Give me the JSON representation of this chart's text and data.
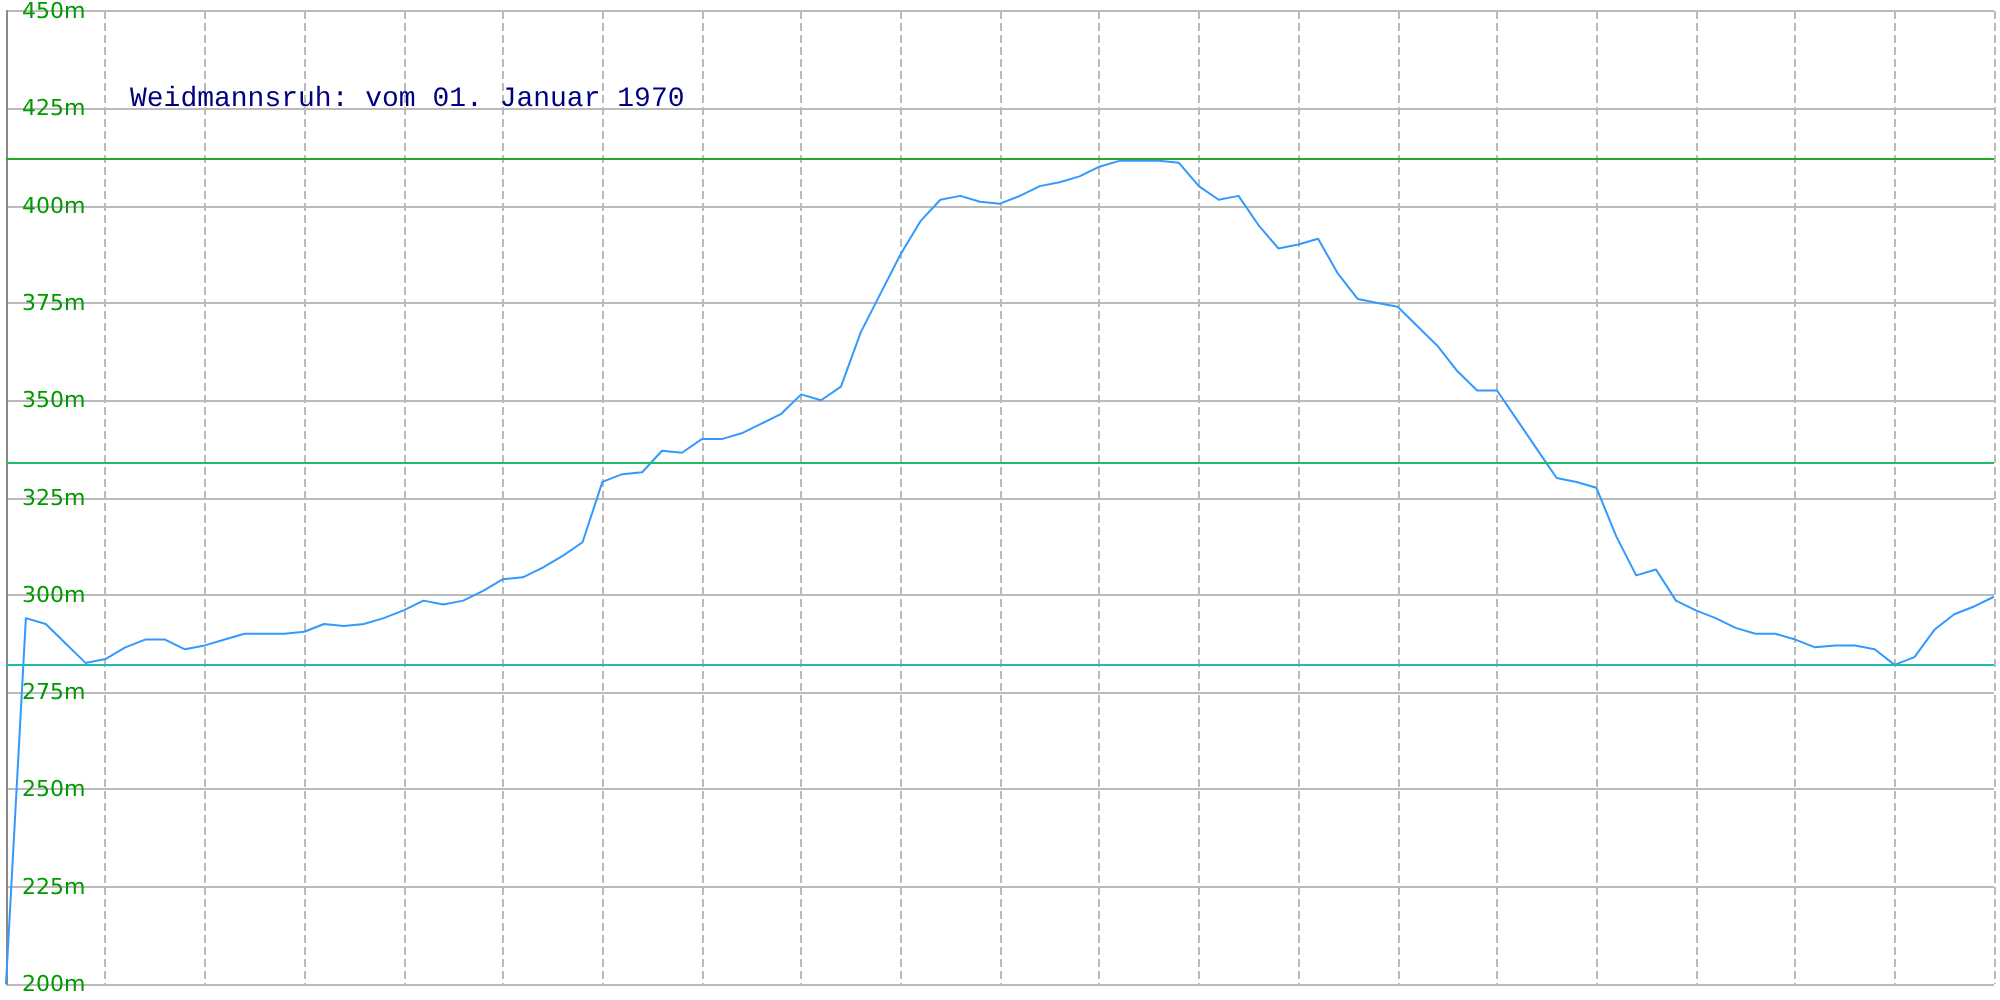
{
  "chart_data": {
    "type": "line",
    "title": "Weidmannsruh: vom 01. Januar 1970",
    "categories": [
      null,
      null,
      null,
      null,
      null,
      null,
      null,
      null,
      null,
      null,
      null,
      null,
      null,
      null,
      null,
      null,
      null,
      null,
      null,
      null,
      null,
      null,
      null,
      null,
      null,
      null,
      null,
      null,
      null,
      null,
      null,
      null,
      null,
      null,
      null,
      null,
      null,
      null,
      null,
      null,
      null,
      null,
      null,
      null,
      null,
      null,
      null,
      null,
      null,
      null,
      null,
      null,
      null,
      null,
      null,
      null,
      null,
      null,
      null,
      null,
      null,
      null,
      null,
      null,
      null,
      null,
      null,
      null,
      null,
      null,
      null,
      null,
      null,
      null,
      null,
      null,
      null,
      null,
      null,
      null,
      null,
      null,
      null,
      null,
      null,
      null,
      null,
      null,
      null,
      null,
      null,
      null,
      null,
      null,
      null,
      null,
      null,
      null,
      null,
      null,
      null
    ],
    "series": [
      {
        "color": "#3399ff",
        "values": [
          200,
          294,
          292.5,
          287.5,
          282.5,
          283.5,
          286.5,
          288.5,
          288.5,
          286,
          287,
          288.5,
          290,
          290,
          290,
          290.5,
          292.5,
          292,
          292.5,
          294,
          296,
          298.5,
          297.5,
          298.5,
          301,
          304,
          304.5,
          307,
          310,
          313.5,
          329,
          331,
          331.5,
          337,
          336.5,
          340,
          340,
          341.5,
          344,
          346.5,
          351.5,
          350,
          353.5,
          367.5,
          377.5,
          387.5,
          396,
          401.5,
          402.5,
          401,
          400.5,
          402.5,
          405,
          406,
          407.5,
          410,
          411.5,
          411.5,
          411.5,
          411,
          405,
          401.5,
          402.5,
          395,
          389,
          390,
          391.5,
          382.5,
          376,
          375,
          374,
          369,
          364,
          357.5,
          352.5,
          352.5,
          345,
          337.5,
          330,
          329,
          327.5,
          315,
          305,
          306.5,
          298.5,
          296,
          294,
          291.5,
          290,
          290,
          288.5,
          286.5,
          287,
          287,
          286,
          282,
          284,
          291,
          295,
          297,
          299.5
        ]
      }
    ],
    "ylim": [
      200,
      450
    ],
    "yticks": [
      {
        "value": 200,
        "label": "200m"
      },
      {
        "value": 225,
        "label": "225m"
      },
      {
        "value": 250,
        "label": "250m"
      },
      {
        "value": 275,
        "label": "275m"
      },
      {
        "value": 300,
        "label": "300m"
      },
      {
        "value": 325,
        "label": "325m"
      },
      {
        "value": 350,
        "label": "350m"
      },
      {
        "value": 375,
        "label": "375m"
      },
      {
        "value": 400,
        "label": "400m"
      },
      {
        "value": 425,
        "label": "425m"
      },
      {
        "value": 450,
        "label": "450m"
      }
    ],
    "ref_lines": [
      {
        "axis": "y",
        "value": 412,
        "color": "#22aa22"
      },
      {
        "axis": "y",
        "value": 334,
        "color": "#22bb66"
      },
      {
        "axis": "y",
        "value": 282,
        "color": "#22bbaa"
      }
    ],
    "grid": true,
    "marker": "none",
    "line_style": "solid"
  }
}
